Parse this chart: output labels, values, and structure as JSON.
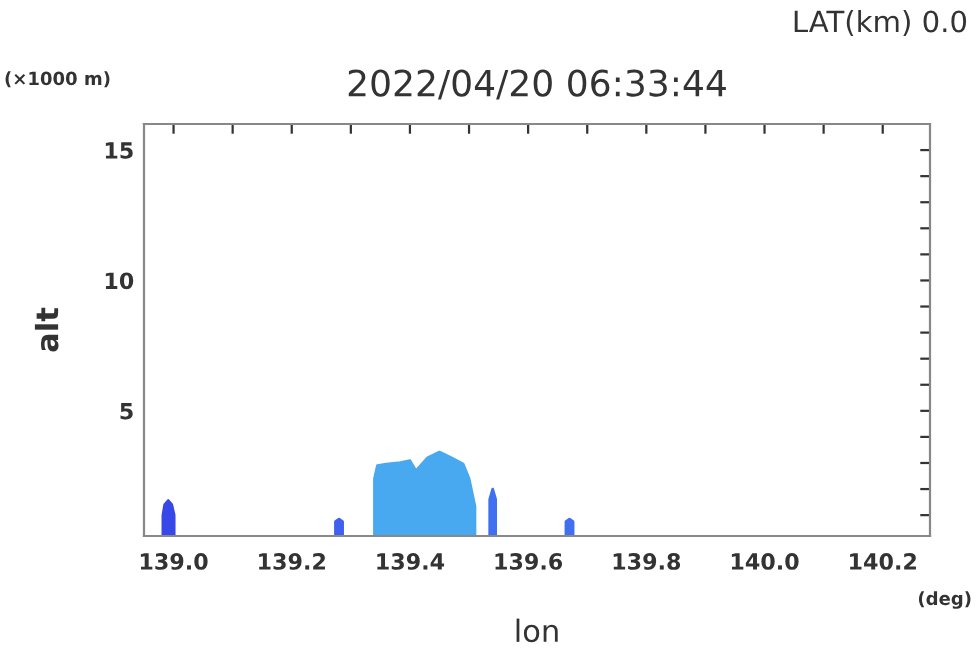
{
  "chart_data": {
    "type": "area",
    "title": "2022/04/20 06:33:44",
    "xlabel": "lon",
    "ylabel": "alt",
    "annotations": [
      "LAT(km) 0.0",
      "(×1000 m)",
      "(deg)"
    ],
    "series": [
      {
        "color": "#3848e8",
        "x": [
          138.982,
          138.985,
          138.991,
          138.997,
          139.001
        ],
        "values": [
          1.0,
          1.4,
          1.56,
          1.4,
          1.0
        ]
      },
      {
        "color": "#48a8f0",
        "x": [
          139.34,
          139.345,
          139.36,
          139.38,
          139.4,
          139.41,
          139.43,
          139.45,
          139.47,
          139.49,
          139.5,
          139.51
        ],
        "values": [
          2.4,
          2.9,
          2.96,
          3.0,
          3.09,
          2.7,
          3.2,
          3.42,
          3.2,
          2.96,
          2.4,
          1.34
        ]
      },
      {
        "color": "#4060f0",
        "x": [
          139.274,
          139.28,
          139.286
        ],
        "values": [
          0.75,
          0.85,
          0.75
        ]
      },
      {
        "color": "#4070f0",
        "x": [
          139.535,
          139.54,
          139.545
        ],
        "values": [
          1.6,
          2.0,
          1.6
        ]
      },
      {
        "color": "#4070f0",
        "x": [
          139.664,
          139.67,
          139.676
        ],
        "values": [
          0.75,
          0.85,
          0.75
        ]
      }
    ],
    "xlim": [
      138.95,
      140.28
    ],
    "ylim": [
      0.2,
      16
    ],
    "xticks": [
      {
        "value": 139,
        "label": "139.0"
      },
      {
        "value": 139.1,
        "label": null
      },
      139.2,
      {
        "value": 139.3,
        "label": null
      },
      139.4,
      {
        "value": 139.5,
        "label": null
      },
      139.6,
      {
        "value": 139.7,
        "label": null
      },
      139.8,
      {
        "value": 139.9,
        "label": null
      },
      {
        "value": 140,
        "label": "140.0"
      },
      {
        "value": 140.1,
        "label": null
      },
      140.2
    ],
    "yticks": [
      {
        "value": 1,
        "label": null
      },
      {
        "value": 2,
        "label": null
      },
      {
        "value": 3,
        "label": null
      },
      {
        "value": 4,
        "label": null
      },
      5,
      {
        "value": 6,
        "label": null
      },
      {
        "value": 7,
        "label": null
      },
      {
        "value": 8,
        "label": null
      },
      {
        "value": 9,
        "label": null
      },
      10,
      {
        "value": 11,
        "label": null
      },
      {
        "value": 12,
        "label": null
      },
      {
        "value": 13,
        "label": null
      },
      {
        "value": 14,
        "label": null
      },
      15
    ],
    "grid": false,
    "legend": false
  }
}
